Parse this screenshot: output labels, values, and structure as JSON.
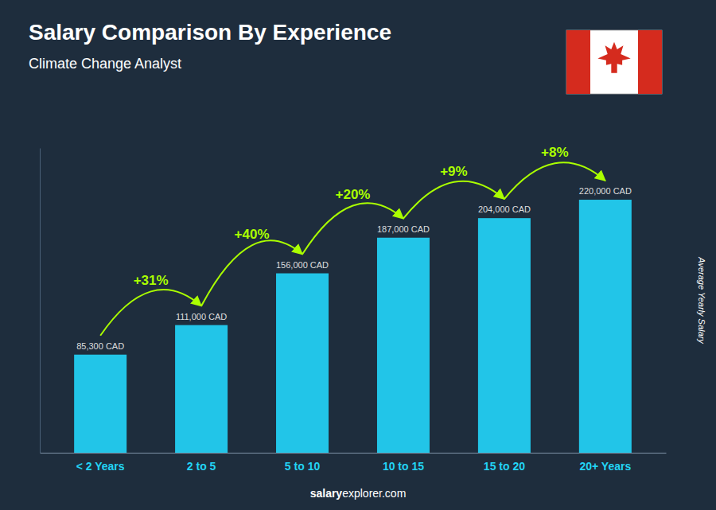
{
  "chart_data": {
    "type": "bar",
    "title": "Salary Comparison By Experience",
    "subtitle": "Climate Change Analyst",
    "categories": [
      "< 2 Years",
      "2 to 5",
      "5 to 10",
      "10 to 15",
      "15 to 20",
      "20+ Years"
    ],
    "values": [
      85300,
      111000,
      156000,
      187000,
      204000,
      220000
    ],
    "value_labels": [
      "85,300 CAD",
      "111,000 CAD",
      "156,000 CAD",
      "187,000 CAD",
      "204,000 CAD",
      "220,000 CAD"
    ],
    "data_labels": true,
    "annotations": [
      "+31%",
      "+40%",
      "+20%",
      "+9%",
      "+8%"
    ],
    "ylabel": "Average Yearly Salary",
    "footer": [
      "salary",
      "explorer.com"
    ],
    "color": "#22c5e8",
    "ylim": [
      0,
      265000
    ],
    "grid": false,
    "tick_labels": "x"
  }
}
